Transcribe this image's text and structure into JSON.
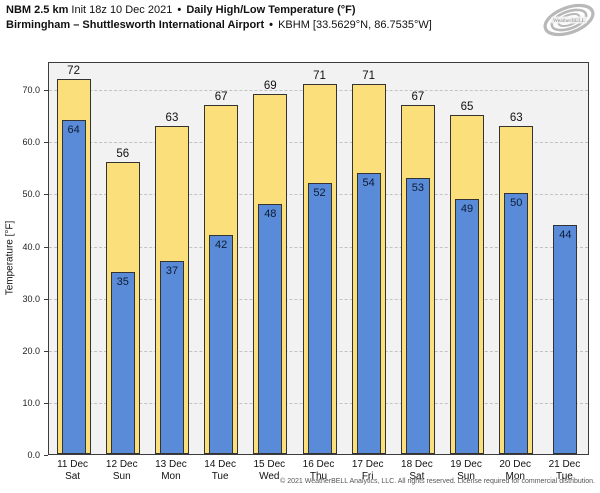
{
  "header": {
    "model": "NBM 2.5 km",
    "init": "Init 18z 10 Dec 2021",
    "sep": "•",
    "product": "Daily High/Low Temperature (°F)",
    "location": "Birmingham – Shuttlesworth International Airport",
    "station": "KBHM [33.5629°N, 86.7535°W]"
  },
  "logo": {
    "brand": "WeatherBELL"
  },
  "footer": {
    "copyright": "© 2021 WeatherBELL Analytics, LLC. All rights reserved. License required for commercial distribution."
  },
  "chart_data": {
    "type": "bar",
    "title": "Daily High/Low Temperature (°F)",
    "ylabel": "Temperature [°F]",
    "ylim": [
      0,
      75.4
    ],
    "yticks": [
      0,
      10,
      20,
      30,
      40,
      50,
      60,
      70
    ],
    "grid": "horizontal-dashed",
    "legend": "none",
    "categories": [
      {
        "date": "11 Dec",
        "day": "Sat"
      },
      {
        "date": "12 Dec",
        "day": "Sun"
      },
      {
        "date": "13 Dec",
        "day": "Mon"
      },
      {
        "date": "14 Dec",
        "day": "Tue"
      },
      {
        "date": "15 Dec",
        "day": "Wed"
      },
      {
        "date": "16 Dec",
        "day": "Thu"
      },
      {
        "date": "17 Dec",
        "day": "Fri"
      },
      {
        "date": "18 Dec",
        "day": "Sat"
      },
      {
        "date": "19 Dec",
        "day": "Sun"
      },
      {
        "date": "20 Dec",
        "day": "Mon"
      },
      {
        "date": "21 Dec",
        "day": "Tue"
      }
    ],
    "series": [
      {
        "name": "Daily High",
        "color": "#fbdf7a",
        "values": [
          72,
          56,
          63,
          67,
          69,
          71,
          71,
          67,
          65,
          63,
          null
        ]
      },
      {
        "name": "Daily Low",
        "color": "#5a8bd9",
        "values": [
          64,
          35,
          37,
          42,
          48,
          52,
          54,
          53,
          49,
          50,
          44
        ]
      }
    ],
    "colors": {
      "plot_background": "#f2f2f2",
      "figure_background": "#ffffff",
      "bar_border": "#333333",
      "gridline": "#c3c3c3",
      "axis_border": "#3c3c3c"
    }
  }
}
